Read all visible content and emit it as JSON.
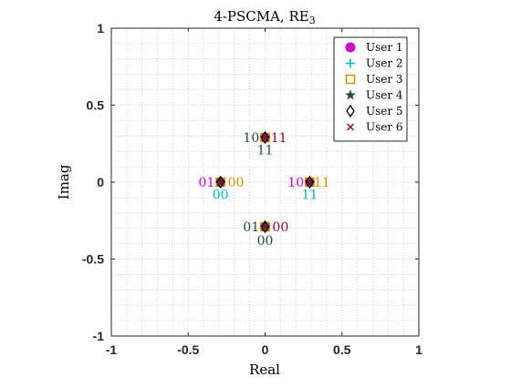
{
  "chart_data": {
    "type": "scatter",
    "title": "4-PSCMA, RE",
    "title_subscript": "3",
    "xlabel": "Real",
    "ylabel": "Imag",
    "xlim": [
      -1,
      1
    ],
    "ylim": [
      -1,
      1
    ],
    "xticks": [
      -1,
      -0.5,
      0,
      0.5,
      1
    ],
    "yticks": [
      -1,
      -0.5,
      0,
      0.5,
      1
    ],
    "xtick_labels": [
      "-1",
      "-0.5",
      "0",
      "0.5",
      "1"
    ],
    "ytick_labels": [
      "-1",
      "-0.5",
      "0",
      "0.5",
      "1"
    ],
    "grid": true,
    "minor_grid": true,
    "legend_position": "top-right",
    "series": [
      {
        "name": "User 1",
        "marker": "filled-circle",
        "color": "#cc00cc",
        "points": [
          {
            "x": -0.29,
            "y": 0.0
          },
          {
            "x": 0.29,
            "y": 0.0
          },
          {
            "x": 0.0,
            "y": 0.29
          },
          {
            "x": 0.0,
            "y": -0.29
          }
        ]
      },
      {
        "name": "User 2",
        "marker": "plus",
        "color": "#00b8b8",
        "points": [
          {
            "x": -0.29,
            "y": 0.0
          },
          {
            "x": 0.29,
            "y": 0.0
          },
          {
            "x": 0.0,
            "y": 0.29
          },
          {
            "x": 0.0,
            "y": -0.29
          }
        ]
      },
      {
        "name": "User 3",
        "marker": "square",
        "color": "#e08a00",
        "points": [
          {
            "x": -0.29,
            "y": 0.0
          },
          {
            "x": 0.29,
            "y": 0.0
          },
          {
            "x": 0.0,
            "y": 0.29
          },
          {
            "x": 0.0,
            "y": -0.29
          }
        ]
      },
      {
        "name": "User 4",
        "marker": "star",
        "color": "#1f4d3a",
        "points": [
          {
            "x": -0.29,
            "y": 0.0
          },
          {
            "x": 0.29,
            "y": 0.0
          },
          {
            "x": 0.0,
            "y": 0.29
          },
          {
            "x": 0.0,
            "y": -0.29
          }
        ]
      },
      {
        "name": "User 5",
        "marker": "diamond",
        "color": "#000000",
        "points": [
          {
            "x": -0.29,
            "y": 0.0
          },
          {
            "x": 0.29,
            "y": 0.0
          },
          {
            "x": 0.0,
            "y": 0.29
          },
          {
            "x": 0.0,
            "y": -0.29
          }
        ]
      },
      {
        "name": "User 6",
        "marker": "x",
        "color": "#990033",
        "points": [
          {
            "x": -0.29,
            "y": 0.0
          },
          {
            "x": 0.29,
            "y": 0.0
          },
          {
            "x": 0.0,
            "y": 0.29
          },
          {
            "x": 0.0,
            "y": -0.29
          }
        ]
      }
    ],
    "annotations": [
      {
        "text": "01",
        "x": -0.38,
        "y": 0.0,
        "color": "#cc00cc"
      },
      {
        "text": "00",
        "x": -0.19,
        "y": 0.0,
        "color": "#e08a00"
      },
      {
        "text": "00",
        "x": -0.29,
        "y": -0.08,
        "color": "#00b8b8"
      },
      {
        "text": "10",
        "x": 0.2,
        "y": 0.0,
        "color": "#cc00cc"
      },
      {
        "text": "11",
        "x": 0.37,
        "y": 0.0,
        "color": "#e08a00"
      },
      {
        "text": "11",
        "x": 0.29,
        "y": -0.08,
        "color": "#00b8b8"
      },
      {
        "text": "10",
        "x": -0.09,
        "y": 0.29,
        "color": "#1f4d3a"
      },
      {
        "text": "11",
        "x": 0.09,
        "y": 0.29,
        "color": "#990033"
      },
      {
        "text": "11",
        "x": 0.0,
        "y": 0.21,
        "color": "#1f4d3a"
      },
      {
        "text": "01",
        "x": -0.09,
        "y": -0.29,
        "color": "#1f4d3a"
      },
      {
        "text": "00",
        "x": 0.1,
        "y": -0.29,
        "color": "#990033"
      },
      {
        "text": "00",
        "x": 0.0,
        "y": -0.38,
        "color": "#1f4d3a"
      }
    ]
  }
}
